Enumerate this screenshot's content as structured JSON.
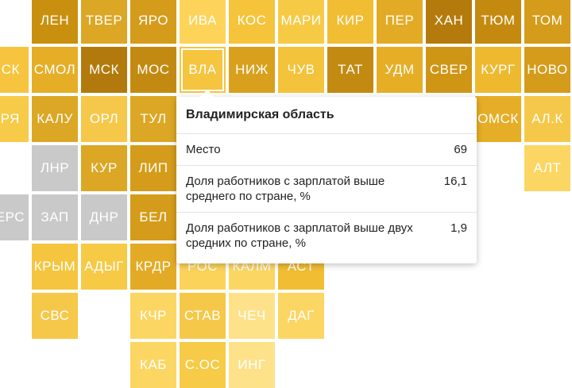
{
  "regions": [
    {
      "code": "ЛЕН",
      "color": "#c9900f"
    },
    {
      "code": "ТВЕР",
      "color": "#dba724"
    },
    {
      "code": "ЯРО",
      "color": "#d49c1a"
    },
    {
      "code": "ИВА",
      "color": "#fdd35a"
    },
    {
      "code": "КОС",
      "color": "#f5c43b"
    },
    {
      "code": "МАРИ",
      "color": "#f7ca46"
    },
    {
      "code": "КИР",
      "color": "#f0bd33"
    },
    {
      "code": "ПЕР",
      "color": "#e3ab25"
    },
    {
      "code": "ХАН",
      "color": "#b47b0c"
    },
    {
      "code": "ТЮМ",
      "color": "#c48a10"
    },
    {
      "code": "ТОМ",
      "color": "#d49c1a"
    },
    {
      "code": "ПСК",
      "color": "#f6c43e"
    },
    {
      "code": "СМОЛ",
      "color": "#e6ae27"
    },
    {
      "code": "МСК",
      "color": "#b27a0c"
    },
    {
      "code": "МОС",
      "color": "#c38a12"
    },
    {
      "code": "ВЛА",
      "color": "#f5c53f"
    },
    {
      "code": "НИЖ",
      "color": "#d8a01d"
    },
    {
      "code": "ЧУВ",
      "color": "#f3c33b"
    },
    {
      "code": "ТАТ",
      "color": "#c38a12"
    },
    {
      "code": "УДМ",
      "color": "#e6ae27"
    },
    {
      "code": "СВЕР",
      "color": "#cf9616"
    },
    {
      "code": "КУРГ",
      "color": "#eeb92f"
    },
    {
      "code": "НОВО",
      "color": "#d49c1a"
    },
    {
      "code": "БРЯ",
      "color": "#f7cb47"
    },
    {
      "code": "КАЛУ",
      "color": "#dba724"
    },
    {
      "code": "ОРЛ",
      "color": "#f6c84a"
    },
    {
      "code": "ТУЛ",
      "color": "#dba724"
    },
    {
      "code": "ОМСК",
      "color": "#e6ae27"
    },
    {
      "code": "АЛ.К",
      "color": "#f6c84a"
    },
    {
      "code": "ЛНР",
      "color": "#c9c9c9"
    },
    {
      "code": "КУР",
      "color": "#dba724"
    },
    {
      "code": "ЛИП",
      "color": "#d49c1a"
    },
    {
      "code": "АЛТ",
      "color": "#fcd663"
    },
    {
      "code": "ХЕРС",
      "color": "#c9c9c9"
    },
    {
      "code": "ЗАП",
      "color": "#c9c9c9"
    },
    {
      "code": "ДНР",
      "color": "#c9c9c9"
    },
    {
      "code": "БЕЛ",
      "color": "#d49c1a"
    },
    {
      "code": "КРЫМ",
      "color": "#f5c53f"
    },
    {
      "code": "АДЫГ",
      "color": "#f7ca46"
    },
    {
      "code": "КРДР",
      "color": "#e3ab25"
    },
    {
      "code": "РОС",
      "color": "#fbd35b"
    },
    {
      "code": "КАЛМ",
      "color": "#fcd663"
    },
    {
      "code": "АСТ",
      "color": "#f0bd33"
    },
    {
      "code": "СВС",
      "color": "#f6c84a"
    },
    {
      "code": "КЧР",
      "color": "#fcd663"
    },
    {
      "code": "СТАВ",
      "color": "#f6c84a"
    },
    {
      "code": "ЧЕЧ",
      "color": "#fee28a"
    },
    {
      "code": "ДАГ",
      "color": "#fcd663"
    },
    {
      "code": "КАБ",
      "color": "#fcd663"
    },
    {
      "code": "С.ОС",
      "color": "#f7cb47"
    },
    {
      "code": "ИНГ",
      "color": "#fee28a"
    }
  ],
  "tooltip": {
    "title": "Владимирская область",
    "rows": [
      {
        "label": "Место",
        "value": "69"
      },
      {
        "label": "Доля работников с зарплатой выше среднего по стране, %",
        "value": "16,1"
      },
      {
        "label": "Доля работников с зарплатой выше двух средних по стране, %",
        "value": "1,9"
      }
    ]
  }
}
